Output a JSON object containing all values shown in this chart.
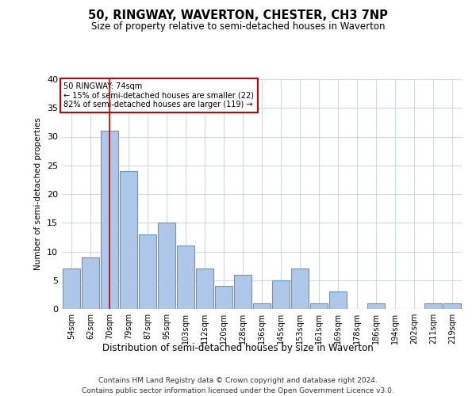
{
  "title": "50, RINGWAY, WAVERTON, CHESTER, CH3 7NP",
  "subtitle": "Size of property relative to semi-detached houses in Waverton",
  "xlabel": "Distribution of semi-detached houses by size in Waverton",
  "ylabel": "Number of semi-detached properties",
  "categories": [
    "54sqm",
    "62sqm",
    "70sqm",
    "79sqm",
    "87sqm",
    "95sqm",
    "103sqm",
    "112sqm",
    "120sqm",
    "128sqm",
    "136sqm",
    "145sqm",
    "153sqm",
    "161sqm",
    "169sqm",
    "178sqm",
    "186sqm",
    "194sqm",
    "202sqm",
    "211sqm",
    "219sqm"
  ],
  "values": [
    7,
    9,
    31,
    24,
    13,
    15,
    11,
    7,
    4,
    6,
    1,
    5,
    7,
    1,
    3,
    0,
    1,
    0,
    0,
    1,
    1
  ],
  "bar_color": "#aec6e8",
  "bar_edge_color": "#5b9bd5",
  "highlight_index": 2,
  "highlight_line_color": "#cc0000",
  "annotation_text": "50 RINGWAY: 74sqm\n← 15% of semi-detached houses are smaller (22)\n82% of semi-detached houses are larger (119) →",
  "annotation_box_color": "#ffffff",
  "annotation_box_edge_color": "#cc0000",
  "ylim": [
    0,
    40
  ],
  "yticks": [
    0,
    5,
    10,
    15,
    20,
    25,
    30,
    35,
    40
  ],
  "footer_line1": "Contains HM Land Registry data © Crown copyright and database right 2024.",
  "footer_line2": "Contains public sector information licensed under the Open Government Licence v3.0.",
  "background_color": "#ffffff",
  "grid_color": "#d0d8e8"
}
